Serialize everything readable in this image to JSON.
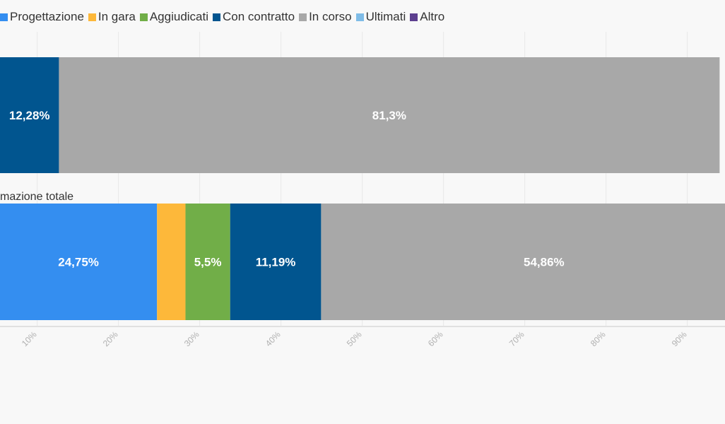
{
  "colors": {
    "background": "#f8f8f8",
    "grid": "#e8e8e8",
    "axis": "#e1e1e1",
    "value_label": "#ffffff"
  },
  "chart_data": {
    "type": "bar",
    "orientation": "horizontal",
    "stacked": true,
    "legend_position": "top-left",
    "grid": true,
    "xlim": [
      0,
      100
    ],
    "x_ticks": [
      10,
      20,
      30,
      40,
      50,
      60,
      70,
      80,
      90
    ],
    "x_tick_labels": [
      "10%",
      "20%",
      "30%",
      "40%",
      "50%",
      "60%",
      "70%",
      "80%",
      "90%"
    ],
    "categories": [
      "",
      "mazione totale"
    ],
    "series": [
      {
        "name": "Progettazione",
        "color": "#348ef0",
        "values": [
          0,
          24.75
        ],
        "labels": [
          "",
          "24,75%"
        ]
      },
      {
        "name": "In gara",
        "color": "#fdb83a",
        "values": [
          0,
          3.5
        ],
        "labels": [
          "",
          ""
        ]
      },
      {
        "name": "Aggiudicati",
        "color": "#71ae48",
        "values": [
          0.4,
          5.5
        ],
        "labels": [
          "",
          "5,5%"
        ]
      },
      {
        "name": "Con contratto",
        "color": "#01558f",
        "values": [
          12.28,
          11.19
        ],
        "labels": [
          "12,28%",
          "11,19%"
        ]
      },
      {
        "name": "In corso",
        "color": "#a8a8a8",
        "values": [
          81.3,
          54.86
        ],
        "labels": [
          "81,3%",
          "54,86%"
        ]
      },
      {
        "name": "Ultimati",
        "color": "#7fbce7",
        "values": [
          0,
          0
        ],
        "labels": [
          "",
          ""
        ]
      },
      {
        "name": "Altro",
        "color": "#5d3f8f",
        "values": [
          0,
          0
        ],
        "labels": [
          "",
          ""
        ]
      }
    ]
  }
}
